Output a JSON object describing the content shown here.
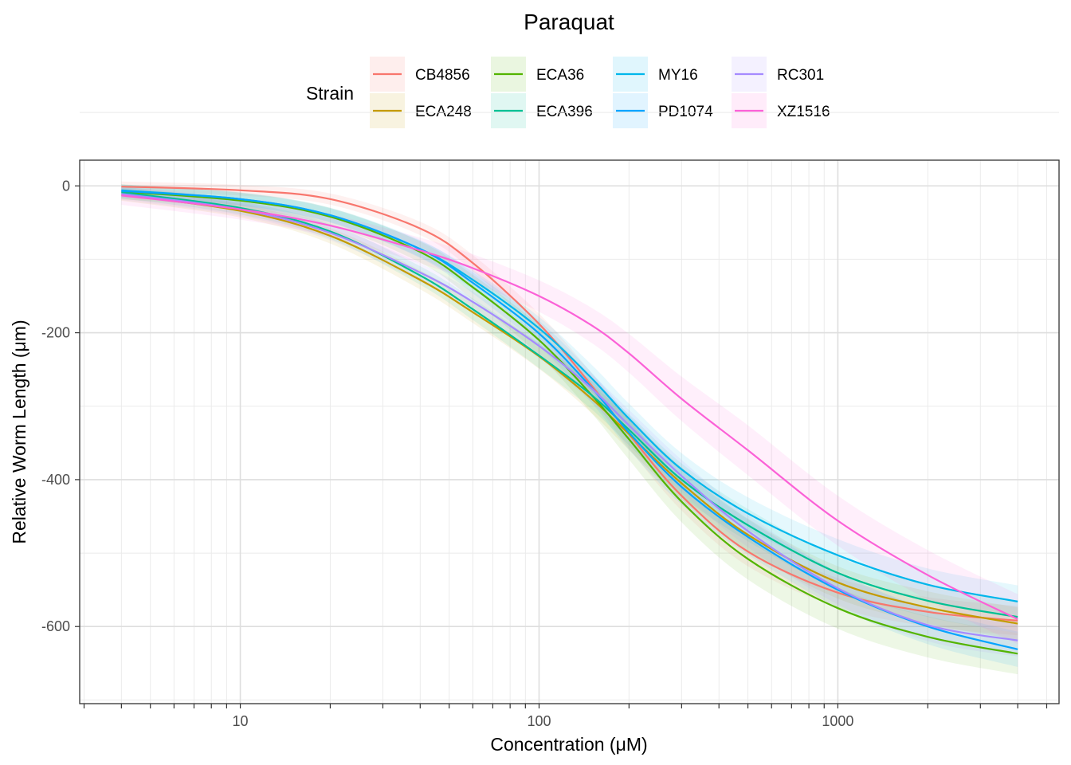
{
  "chart_data": {
    "type": "line",
    "title": "Paraquat",
    "xlabel": "Concentration (μM)",
    "ylabel": "Relative Worm Length (μm)",
    "xscale": "log10",
    "xlim": [
      2.9,
      5500
    ],
    "ylim": [
      -705,
      35
    ],
    "x_ticks": [
      10,
      100,
      1000
    ],
    "x_tick_labels": [
      "10",
      "100",
      "1000"
    ],
    "y_ticks": [
      0,
      -200,
      -400,
      -600
    ],
    "y_tick_labels": [
      "0",
      "-200",
      "-400",
      "-600"
    ],
    "grid": true,
    "legend_title": "Strain",
    "legend_position": "top",
    "x": [
      4,
      10,
      20,
      40,
      60,
      100,
      150,
      200,
      300,
      500,
      1000,
      2000,
      4000
    ],
    "series": [
      {
        "name": "CB4856",
        "color": "#F8766D",
        "ribbon": 20,
        "values": [
          -1,
          -6,
          -18,
          -58,
          -105,
          -188,
          -272,
          -338,
          -422,
          -498,
          -554,
          -580,
          -592
        ]
      },
      {
        "name": "ECA248",
        "color": "#C49A00",
        "ribbon": 22,
        "values": [
          -12,
          -34,
          -68,
          -128,
          -172,
          -232,
          -290,
          -338,
          -405,
          -475,
          -540,
          -574,
          -596
        ]
      },
      {
        "name": "ECA36",
        "color": "#53B400",
        "ribbon": 28,
        "values": [
          -8,
          -20,
          -42,
          -90,
          -138,
          -210,
          -285,
          -345,
          -430,
          -508,
          -575,
          -614,
          -637
        ]
      },
      {
        "name": "ECA396",
        "color": "#00C094",
        "ribbon": 22,
        "values": [
          -9,
          -30,
          -62,
          -122,
          -168,
          -231,
          -285,
          -332,
          -400,
          -462,
          -527,
          -565,
          -587
        ]
      },
      {
        "name": "MY16",
        "color": "#00B6EB",
        "ribbon": 22,
        "values": [
          -6,
          -18,
          -40,
          -86,
          -128,
          -194,
          -262,
          -317,
          -386,
          -446,
          -503,
          -543,
          -566
        ]
      },
      {
        "name": "PD1074",
        "color": "#06A4FF",
        "ribbon": 24,
        "values": [
          -7,
          -18,
          -40,
          -86,
          -132,
          -201,
          -275,
          -336,
          -410,
          -478,
          -550,
          -600,
          -631
        ]
      },
      {
        "name": "RC301",
        "color": "#A58AFF",
        "ribbon": 22,
        "values": [
          -11,
          -32,
          -64,
          -118,
          -158,
          -218,
          -276,
          -326,
          -395,
          -470,
          -548,
          -598,
          -619
        ]
      },
      {
        "name": "XZ1516",
        "color": "#FB61D7",
        "ribbon": 34,
        "values": [
          -13,
          -32,
          -54,
          -88,
          -112,
          -150,
          -190,
          -228,
          -290,
          -360,
          -456,
          -530,
          -590
        ]
      }
    ]
  }
}
